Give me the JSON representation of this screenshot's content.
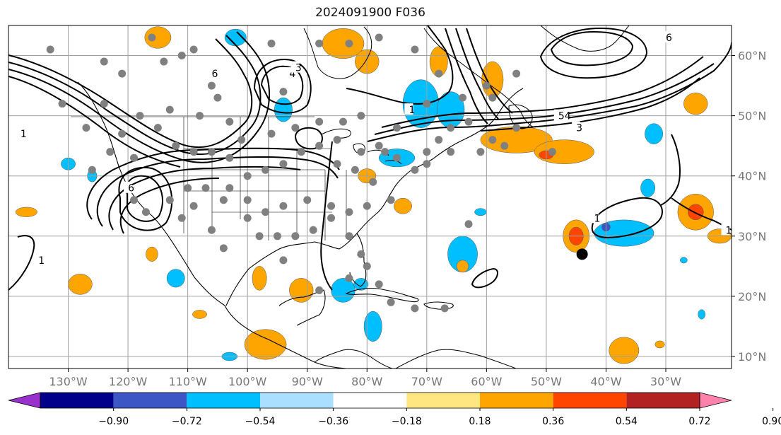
{
  "title": "2024091900 F036",
  "map": {
    "lon_range": [
      -140,
      -19
    ],
    "lat_range": [
      8,
      65
    ],
    "lon_ticks": [
      {
        "value": -130,
        "label": "130°W"
      },
      {
        "value": -120,
        "label": "120°W"
      },
      {
        "value": -110,
        "label": "110°W"
      },
      {
        "value": -100,
        "label": "100°W"
      },
      {
        "value": -90,
        "label": "90°W"
      },
      {
        "value": -80,
        "label": "80°W"
      },
      {
        "value": -70,
        "label": "70°W"
      },
      {
        "value": -60,
        "label": "60°W"
      },
      {
        "value": -50,
        "label": "50°W"
      },
      {
        "value": -40,
        "label": "40°W"
      },
      {
        "value": -30,
        "label": "30°W"
      }
    ],
    "lat_ticks": [
      {
        "value": 10,
        "label": "10°N"
      },
      {
        "value": 20,
        "label": "20°N"
      },
      {
        "value": 30,
        "label": "30°N"
      },
      {
        "value": 40,
        "label": "40°N"
      },
      {
        "value": 50,
        "label": "50°N"
      },
      {
        "value": 60,
        "label": "60°N"
      }
    ],
    "contour_labels": [
      {
        "text": "1",
        "lon": -138,
        "lat": 47
      },
      {
        "text": "1",
        "lon": -135,
        "lat": 26
      },
      {
        "text": "6",
        "lon": -120,
        "lat": 38
      },
      {
        "text": "6",
        "lon": -106,
        "lat": 57
      },
      {
        "text": "4",
        "lon": -93,
        "lat": 57
      },
      {
        "text": "3",
        "lon": -92,
        "lat": 58
      },
      {
        "text": "1",
        "lon": -73,
        "lat": 51
      },
      {
        "text": "54",
        "lon": -48,
        "lat": 50
      },
      {
        "text": "3",
        "lon": -45,
        "lat": 48
      },
      {
        "text": "1",
        "lon": -42,
        "lat": 33
      },
      {
        "text": "6",
        "lon": -30,
        "lat": 63
      },
      {
        "text": "1",
        "lon": -20,
        "lat": 31
      }
    ],
    "marker": {
      "lon": -44,
      "lat": 27
    },
    "station_dots": [
      [
        -133,
        61
      ],
      [
        -124,
        59
      ],
      [
        -116,
        63
      ],
      [
        -111,
        60
      ],
      [
        -109,
        61
      ],
      [
        -106,
        55
      ],
      [
        -105,
        53
      ],
      [
        -103,
        49
      ],
      [
        -96,
        62
      ],
      [
        -94,
        54
      ],
      [
        -92,
        58
      ],
      [
        -88,
        62
      ],
      [
        -83,
        62
      ],
      [
        -78,
        63
      ],
      [
        -72,
        61
      ],
      [
        -68,
        57
      ],
      [
        -64,
        53
      ],
      [
        -59,
        53
      ],
      [
        -55,
        48
      ],
      [
        -63,
        49
      ],
      [
        -66,
        48
      ],
      [
        -68,
        46
      ],
      [
        -70,
        44
      ],
      [
        -75,
        43
      ],
      [
        -78,
        45
      ],
      [
        -81,
        44
      ],
      [
        -85,
        46
      ],
      [
        -88,
        45
      ],
      [
        -91,
        44
      ],
      [
        -94,
        42
      ],
      [
        -97,
        41
      ],
      [
        -100,
        40
      ],
      [
        -103,
        43
      ],
      [
        -106,
        44
      ],
      [
        -109,
        44
      ],
      [
        -112,
        45
      ],
      [
        -115,
        48
      ],
      [
        -118,
        50
      ],
      [
        -121,
        47
      ],
      [
        -123,
        44
      ],
      [
        -126,
        41
      ],
      [
        -127,
        48
      ],
      [
        -113,
        51
      ],
      [
        -108,
        50
      ],
      [
        -101,
        46
      ],
      [
        -96,
        47
      ],
      [
        -92,
        48
      ],
      [
        -88,
        49
      ],
      [
        -85,
        42
      ],
      [
        -82,
        41
      ],
      [
        -79,
        39
      ],
      [
        -76,
        36
      ],
      [
        -80,
        35
      ],
      [
        -83,
        34
      ],
      [
        -86,
        35
      ],
      [
        -90,
        36
      ],
      [
        -94,
        35
      ],
      [
        -97,
        34
      ],
      [
        -100,
        36
      ],
      [
        -104,
        36
      ],
      [
        -107,
        38
      ],
      [
        -110,
        38
      ],
      [
        -113,
        36
      ],
      [
        -117,
        34
      ],
      [
        -119,
        36
      ],
      [
        -111,
        33
      ],
      [
        -106,
        31
      ],
      [
        -104,
        28
      ],
      [
        -98,
        30
      ],
      [
        -95,
        30
      ],
      [
        -92,
        30
      ],
      [
        -89,
        31
      ],
      [
        -86,
        33
      ],
      [
        -83,
        30
      ],
      [
        -81,
        27
      ],
      [
        -80,
        25
      ],
      [
        -78,
        22
      ],
      [
        -76,
        19
      ],
      [
        -72,
        18
      ],
      [
        -67,
        18
      ],
      [
        -83,
        23
      ],
      [
        -88,
        21
      ],
      [
        -77,
        44
      ],
      [
        -72,
        41
      ],
      [
        -70,
        42
      ],
      [
        -66,
        44
      ],
      [
        -61,
        44
      ],
      [
        -59,
        46
      ],
      [
        -57,
        45
      ],
      [
        -49,
        44
      ],
      [
        -63,
        32
      ],
      [
        -94,
        26
      ],
      [
        -100,
        33
      ],
      [
        -103,
        38
      ],
      [
        -109,
        35
      ],
      [
        -119,
        43
      ],
      [
        -124,
        52
      ],
      [
        -131,
        52
      ],
      [
        -121,
        57
      ],
      [
        -114,
        59
      ],
      [
        -84,
        49
      ],
      [
        -81,
        50
      ],
      [
        -75,
        48
      ],
      [
        -70,
        52
      ],
      [
        -60,
        55
      ],
      [
        -55,
        57
      ]
    ],
    "fill_blobs": [
      {
        "color": "#ffa500",
        "lon": -115,
        "lat": 63,
        "rx": 2.2,
        "ry": 1.8
      },
      {
        "color": "#00bfff",
        "lon": -102,
        "lat": 63,
        "rx": 1.8,
        "ry": 1.4
      },
      {
        "color": "#ffa500",
        "lon": -84,
        "lat": 62,
        "rx": 3.5,
        "ry": 2.5
      },
      {
        "color": "#ffa500",
        "lon": -80,
        "lat": 59,
        "rx": 2,
        "ry": 2
      },
      {
        "color": "#00bfff",
        "lon": -71,
        "lat": 52,
        "rx": 3,
        "ry": 4
      },
      {
        "color": "#00bfff",
        "lon": -66,
        "lat": 51,
        "rx": 2.3,
        "ry": 3
      },
      {
        "color": "#ffa500",
        "lon": -68,
        "lat": 59,
        "rx": 1.5,
        "ry": 2.5
      },
      {
        "color": "#ffa500",
        "lon": -59,
        "lat": 56,
        "rx": 1.8,
        "ry": 3
      },
      {
        "color": "#ffa500",
        "lon": -55,
        "lat": 46,
        "rx": 6,
        "ry": 2.2
      },
      {
        "color": "#ffa500",
        "lon": -47,
        "lat": 44,
        "rx": 5,
        "ry": 2
      },
      {
        "color": "#ff4500",
        "lon": -50,
        "lat": 43.5,
        "rx": 1.2,
        "ry": 0.7
      },
      {
        "color": "#ffa500",
        "lon": -25,
        "lat": 52,
        "rx": 2,
        "ry": 1.8
      },
      {
        "color": "#00bfff",
        "lon": -32,
        "lat": 47,
        "rx": 1.5,
        "ry": 1.7
      },
      {
        "color": "#00bfff",
        "lon": -33,
        "lat": 38,
        "rx": 1.2,
        "ry": 1.5
      },
      {
        "color": "#ffa500",
        "lon": -25,
        "lat": 34,
        "rx": 3,
        "ry": 3
      },
      {
        "color": "#ff4500",
        "lon": -25,
        "lat": 34,
        "rx": 1.3,
        "ry": 1.3
      },
      {
        "color": "#ffa500",
        "lon": -21,
        "lat": 30,
        "rx": 2,
        "ry": 1.2
      },
      {
        "color": "#00bfff",
        "lon": -37,
        "lat": 30.5,
        "rx": 5,
        "ry": 2.2
      },
      {
        "color": "#3c56c6",
        "lon": -40,
        "lat": 31.5,
        "rx": 0.7,
        "ry": 0.7
      },
      {
        "color": "#ffa500",
        "lon": -45,
        "lat": 30,
        "rx": 2.2,
        "ry": 2.7
      },
      {
        "color": "#ff4500",
        "lon": -45,
        "lat": 30,
        "rx": 1.2,
        "ry": 1.5
      },
      {
        "color": "#00bfff",
        "lon": -64,
        "lat": 27,
        "rx": 2.5,
        "ry": 3
      },
      {
        "color": "#00bfff",
        "lon": -75,
        "lat": 43,
        "rx": 3,
        "ry": 1.5
      },
      {
        "color": "#ffa500",
        "lon": -80,
        "lat": 40,
        "rx": 1.5,
        "ry": 1.2
      },
      {
        "color": "#ffa500",
        "lon": -74,
        "lat": 35,
        "rx": 1.5,
        "ry": 1.3
      },
      {
        "color": "#00bfff",
        "lon": -94,
        "lat": 51,
        "rx": 1.5,
        "ry": 2
      },
      {
        "color": "#ffa500",
        "lon": -137,
        "lat": 34,
        "rx": 1.8,
        "ry": 0.8
      },
      {
        "color": "#00bfff",
        "lon": -130,
        "lat": 42,
        "rx": 1.2,
        "ry": 1
      },
      {
        "color": "#00bfff",
        "lon": -126,
        "lat": 40,
        "rx": 0.8,
        "ry": 1
      },
      {
        "color": "#ffa500",
        "lon": -128,
        "lat": 22,
        "rx": 2,
        "ry": 1.7
      },
      {
        "color": "#00bfff",
        "lon": -112,
        "lat": 23,
        "rx": 1.5,
        "ry": 1.5
      },
      {
        "color": "#ffa500",
        "lon": -116,
        "lat": 27,
        "rx": 1,
        "ry": 1.2
      },
      {
        "color": "#ffa500",
        "lon": -98,
        "lat": 23,
        "rx": 1.2,
        "ry": 2
      },
      {
        "color": "#ffa500",
        "lon": -91,
        "lat": 21,
        "rx": 2,
        "ry": 2
      },
      {
        "color": "#00bfff",
        "lon": -84,
        "lat": 21,
        "rx": 2,
        "ry": 2
      },
      {
        "color": "#00bfff",
        "lon": -79,
        "lat": 15,
        "rx": 1.5,
        "ry": 2.5
      },
      {
        "color": "#00bfff",
        "lon": -81,
        "lat": 22,
        "rx": 1.2,
        "ry": 1
      },
      {
        "color": "#ffa500",
        "lon": -97,
        "lat": 12,
        "rx": 3.5,
        "ry": 2.5
      },
      {
        "color": "#ffa500",
        "lon": -64,
        "lat": 25,
        "rx": 1,
        "ry": 1
      },
      {
        "color": "#00bfff",
        "lon": -61,
        "lat": 34,
        "rx": 1,
        "ry": 0.6
      },
      {
        "color": "#ffa500",
        "lon": -37,
        "lat": 11,
        "rx": 2.5,
        "ry": 2.2
      },
      {
        "color": "#ffa500",
        "lon": -108,
        "lat": 17,
        "rx": 1.2,
        "ry": 0.7
      },
      {
        "color": "#00bfff",
        "lon": -103,
        "lat": 10,
        "rx": 1.3,
        "ry": 0.7
      },
      {
        "color": "#00bfff",
        "lon": -27,
        "lat": 26,
        "rx": 0.6,
        "ry": 0.5
      },
      {
        "color": "#00bfff",
        "lon": -24,
        "lat": 17,
        "rx": 0.6,
        "ry": 0.8
      },
      {
        "color": "#ffa500",
        "lon": -31,
        "lat": 12,
        "rx": 0.8,
        "ry": 0.6
      }
    ]
  },
  "colorbar": {
    "colors": [
      "#9932cc",
      "#00008b",
      "#3c56c6",
      "#00bfff",
      "#aadfff",
      "#ffffff",
      "#ffe680",
      "#ffa500",
      "#ff4500",
      "#b22222",
      "#ff82ab"
    ],
    "labels": [
      "−0.90",
      "−0.72",
      "−0.54",
      "−0.36",
      "−0.18",
      "0.18",
      "0.36",
      "0.54",
      "0.72",
      "0.90"
    ]
  }
}
